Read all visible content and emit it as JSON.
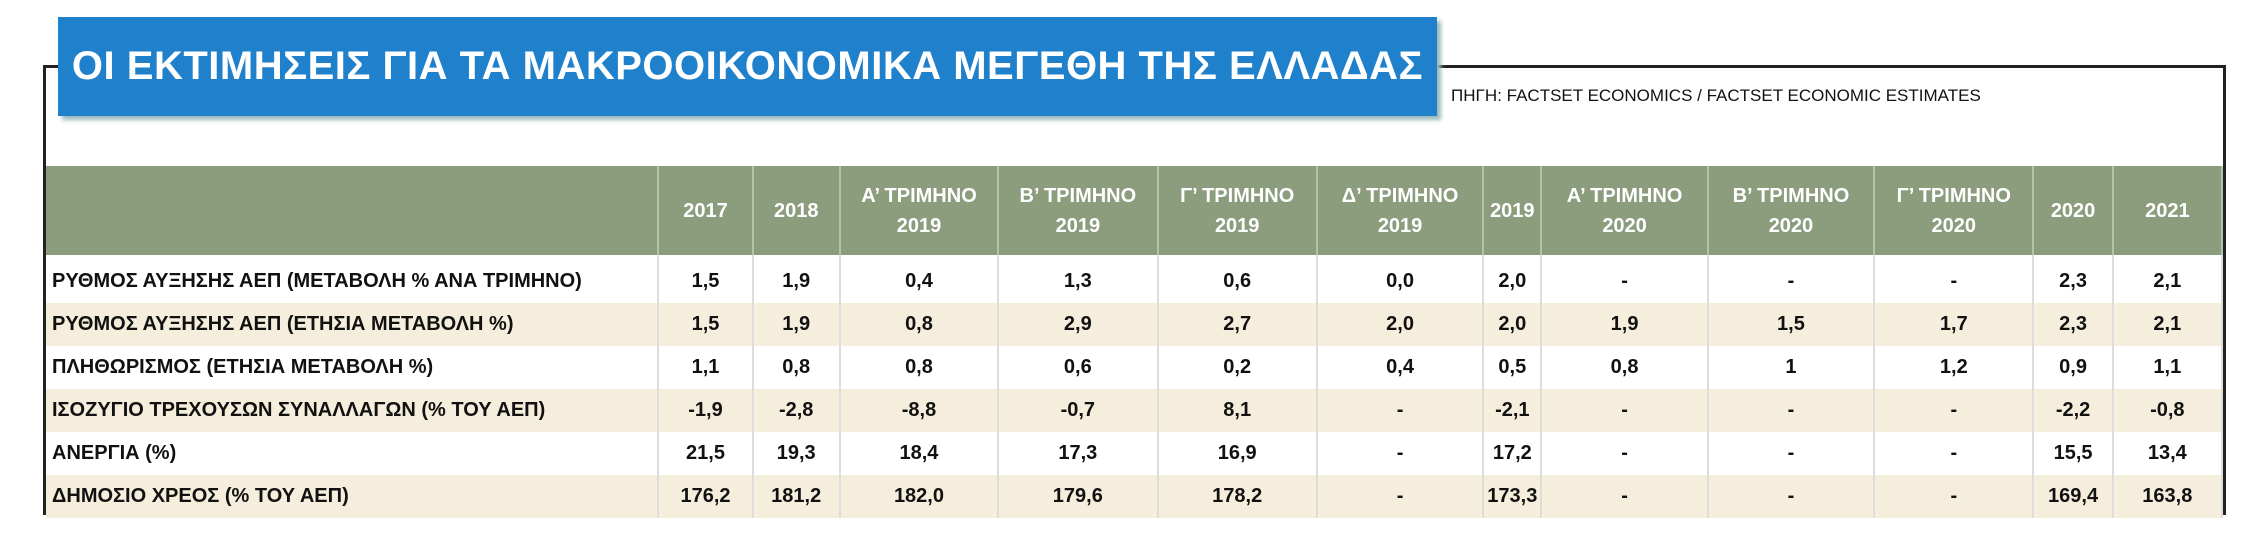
{
  "header": {
    "title": "ΟΙ ΕΚΤΙΜΗΣΕΙΣ ΓΙΑ ΤΑ ΜΑΚΡΟΟΙΚΟΝΟΜΙΚΑ ΜΕΓΕΘΗ ΤΗΣ ΕΛΛΑΔΑΣ",
    "source": "ΠΗΓΗ: FACTSET ECONOMICS / FACTSET ECONOMIC ESTIMATES"
  },
  "table": {
    "columns": [
      "2017",
      "2018",
      "Α’ ΤΡΙΜΗΝΟ\n2019",
      "Β’ ΤΡΙΜΗΝΟ\n2019",
      "Γ’ ΤΡΙΜΗΝΟ\n2019",
      "Δ’ ΤΡΙΜΗΝΟ\n2019",
      "2019",
      "Α’ ΤΡΙΜΗΝΟ\n2020",
      "Β’ ΤΡΙΜΗΝΟ\n2020",
      "Γ’ ΤΡΙΜΗΝΟ\n2020",
      "2020",
      "2021"
    ],
    "rows": [
      [
        "ΡΥΘΜΟΣ ΑΥΞΗΣΗΣ ΑΕΠ (ΜΕΤΑΒΟΛΗ % ΑΝΑ ΤΡΙΜΗΝΟ)",
        "1,5",
        "1,9",
        "0,4",
        "1,3",
        "0,6",
        "0,0",
        "2,0",
        "-",
        "-",
        "-",
        "2,3",
        "2,1"
      ],
      [
        "ΡΥΘΜΟΣ ΑΥΞΗΣΗΣ ΑΕΠ (ΕΤΗΣΙΑ ΜΕΤΑΒΟΛΗ %)",
        "1,5",
        "1,9",
        "0,8",
        "2,9",
        "2,7",
        "2,0",
        "2,0",
        "1,9",
        "1,5",
        "1,7",
        "2,3",
        "2,1"
      ],
      [
        "ΠΛΗΘΩΡΙΣΜΟΣ (ΕΤΗΣΙΑ ΜΕΤΑΒΟΛΗ %)",
        "1,1",
        "0,8",
        "0,8",
        "0,6",
        "0,2",
        "0,4",
        "0,5",
        "0,8",
        "1",
        "1,2",
        "0,9",
        "1,1"
      ],
      [
        "ΙΣΟΖΥΓΙΟ ΤΡΕΧΟΥΣΩΝ ΣΥΝΑΛΛΑΓΩΝ (% ΤΟΥ ΑΕΠ)",
        "-1,9",
        "-2,8",
        "-8,8",
        "-0,7",
        "8,1",
        "-",
        "-2,1",
        "-",
        "-",
        "-",
        "-2,2",
        "-0,8"
      ],
      [
        "ΑΝΕΡΓΙΑ (%)",
        "21,5",
        "19,3",
        "18,4",
        "17,3",
        "16,9",
        "-",
        "17,2",
        "-",
        "-",
        "-",
        "15,5",
        "13,4"
      ],
      [
        "ΔΗΜΟΣΙΟ ΧΡΕΟΣ (% ΤΟΥ ΑΕΠ)",
        "176,2",
        "181,2",
        "182,0",
        "179,6",
        "178,2",
        "-",
        "173,3",
        "-",
        "-",
        "-",
        "169,4",
        "163,8"
      ]
    ]
  }
}
